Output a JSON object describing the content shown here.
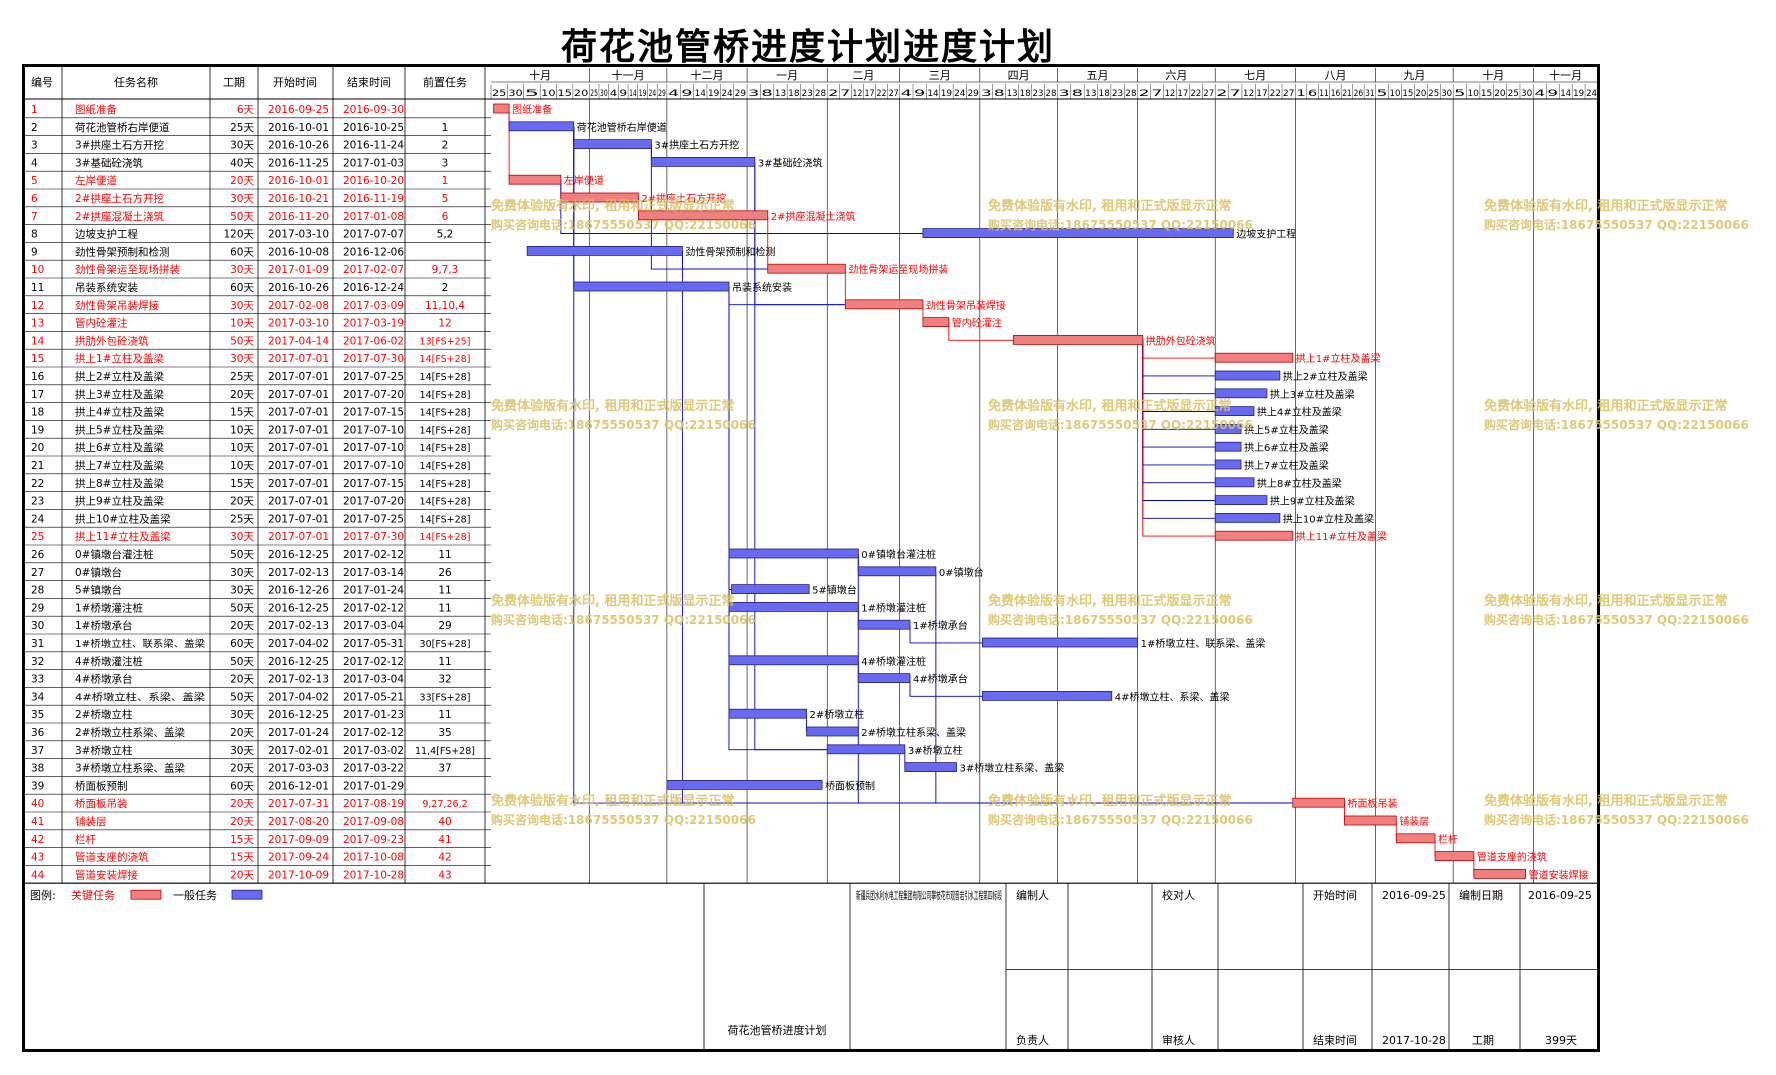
{
  "title": "荷花池管桥进度计划进度计划",
  "columns": [
    "编号",
    "任务名称",
    "工期",
    "开始时间",
    "结束时间",
    "前置任务"
  ],
  "months": [
    "十月",
    "十一月",
    "十二月",
    "一月",
    "二月",
    "三月",
    "四月",
    "五月",
    "六月",
    "七月",
    "八月",
    "九月",
    "十月",
    "十一月"
  ],
  "month_days": [
    [
      "25",
      "30",
      "5",
      "10",
      "15",
      "20"
    ],
    [
      "25",
      "30",
      "4",
      "9",
      "14",
      "19",
      "24",
      "29"
    ],
    [
      "4",
      "9",
      "14",
      "19",
      "24",
      "29"
    ],
    [
      "3",
      "8",
      "13",
      "18",
      "23",
      "28"
    ],
    [
      "2",
      "7",
      "12",
      "17",
      "22",
      "27"
    ],
    [
      "4",
      "9",
      "14",
      "19",
      "24",
      "29"
    ],
    [
      "3",
      "8",
      "13",
      "18",
      "23",
      "28"
    ],
    [
      "3",
      "8",
      "13",
      "18",
      "23",
      "28"
    ],
    [
      "2",
      "7",
      "12",
      "17",
      "22",
      "27"
    ],
    [
      "2",
      "7",
      "12",
      "17",
      "22",
      "27"
    ],
    [
      "1",
      "6",
      "11",
      "16",
      "21",
      "26",
      "31"
    ],
    [
      "5",
      "10",
      "15",
      "20",
      "25",
      "30"
    ],
    [
      "5",
      "10",
      "15",
      "20",
      "25",
      "30"
    ],
    [
      "4",
      "9",
      "14",
      "19",
      "24"
    ]
  ],
  "tasks": [
    {
      "id": "1",
      "name": "图纸准备",
      "dur": "6天",
      "start": "2016-09-25",
      "end": "2016-09-30",
      "pred": "",
      "critical": true
    },
    {
      "id": "2",
      "name": "荷花池管桥右岸便道",
      "dur": "25天",
      "start": "2016-10-01",
      "end": "2016-10-25",
      "pred": "1",
      "critical": false
    },
    {
      "id": "3",
      "name": "3#拱座土石方开挖",
      "dur": "30天",
      "start": "2016-10-26",
      "end": "2016-11-24",
      "pred": "2",
      "critical": false
    },
    {
      "id": "4",
      "name": "3#基础砼浇筑",
      "dur": "40天",
      "start": "2016-11-25",
      "end": "2017-01-03",
      "pred": "3",
      "critical": false
    },
    {
      "id": "5",
      "name": "左岸便道",
      "dur": "20天",
      "start": "2016-10-01",
      "end": "2016-10-20",
      "pred": "1",
      "critical": true
    },
    {
      "id": "6",
      "name": "2#拱座土石方开挖",
      "dur": "30天",
      "start": "2016-10-21",
      "end": "2016-11-19",
      "pred": "5",
      "critical": true
    },
    {
      "id": "7",
      "name": "2#拱座混凝土浇筑",
      "dur": "50天",
      "start": "2016-11-20",
      "end": "2017-01-08",
      "pred": "6",
      "critical": true
    },
    {
      "id": "8",
      "name": "边坡支护工程",
      "dur": "120天",
      "start": "2017-03-10",
      "end": "2017-07-07",
      "pred": "5,2",
      "critical": false
    },
    {
      "id": "9",
      "name": "劲性骨架预制和检测",
      "dur": "60天",
      "start": "2016-10-08",
      "end": "2016-12-06",
      "pred": "",
      "critical": false
    },
    {
      "id": "10",
      "name": "劲性骨架运至现场拼装",
      "dur": "30天",
      "start": "2017-01-09",
      "end": "2017-02-07",
      "pred": "9,7,3",
      "critical": true
    },
    {
      "id": "11",
      "name": "吊装系统安装",
      "dur": "60天",
      "start": "2016-10-26",
      "end": "2016-12-24",
      "pred": "2",
      "critical": false
    },
    {
      "id": "12",
      "name": "劲性骨架吊装焊接",
      "dur": "30天",
      "start": "2017-02-08",
      "end": "2017-03-09",
      "pred": "11,10,4",
      "critical": true
    },
    {
      "id": "13",
      "name": "管内砼灌注",
      "dur": "10天",
      "start": "2017-03-10",
      "end": "2017-03-19",
      "pred": "12",
      "critical": true
    },
    {
      "id": "14",
      "name": "拱肋外包砼浇筑",
      "dur": "50天",
      "start": "2017-04-14",
      "end": "2017-06-02",
      "pred": "13[FS+25]",
      "critical": true
    },
    {
      "id": "15",
      "name": "拱上1#立柱及盖梁",
      "dur": "30天",
      "start": "2017-07-01",
      "end": "2017-07-30",
      "pred": "14[FS+28]",
      "critical": true
    },
    {
      "id": "16",
      "name": "拱上2#立柱及盖梁",
      "dur": "25天",
      "start": "2017-07-01",
      "end": "2017-07-25",
      "pred": "14[FS+28]",
      "critical": false
    },
    {
      "id": "17",
      "name": "拱上3#立柱及盖梁",
      "dur": "20天",
      "start": "2017-07-01",
      "end": "2017-07-20",
      "pred": "14[FS+28]",
      "critical": false
    },
    {
      "id": "18",
      "name": "拱上4#立柱及盖梁",
      "dur": "15天",
      "start": "2017-07-01",
      "end": "2017-07-15",
      "pred": "14[FS+28]",
      "critical": false
    },
    {
      "id": "19",
      "name": "拱上5#立柱及盖梁",
      "dur": "10天",
      "start": "2017-07-01",
      "end": "2017-07-10",
      "pred": "14[FS+28]",
      "critical": false
    },
    {
      "id": "20",
      "name": "拱上6#立柱及盖梁",
      "dur": "10天",
      "start": "2017-07-01",
      "end": "2017-07-10",
      "pred": "14[FS+28]",
      "critical": false
    },
    {
      "id": "21",
      "name": "拱上7#立柱及盖梁",
      "dur": "10天",
      "start": "2017-07-01",
      "end": "2017-07-10",
      "pred": "14[FS+28]",
      "critical": false
    },
    {
      "id": "22",
      "name": "拱上8#立柱及盖梁",
      "dur": "15天",
      "start": "2017-07-01",
      "end": "2017-07-15",
      "pred": "14[FS+28]",
      "critical": false
    },
    {
      "id": "23",
      "name": "拱上9#立柱及盖梁",
      "dur": "20天",
      "start": "2017-07-01",
      "end": "2017-07-20",
      "pred": "14[FS+28]",
      "critical": false
    },
    {
      "id": "24",
      "name": "拱上10#立柱及盖梁",
      "dur": "25天",
      "start": "2017-07-01",
      "end": "2017-07-25",
      "pred": "14[FS+28]",
      "critical": false
    },
    {
      "id": "25",
      "name": "拱上11#立柱及盖梁",
      "dur": "30天",
      "start": "2017-07-01",
      "end": "2017-07-30",
      "pred": "14[FS+28]",
      "critical": true
    },
    {
      "id": "26",
      "name": "0#镇墩台灌注桩",
      "dur": "50天",
      "start": "2016-12-25",
      "end": "2017-02-12",
      "pred": "11",
      "critical": false
    },
    {
      "id": "27",
      "name": "0#镇墩台",
      "dur": "30天",
      "start": "2017-02-13",
      "end": "2017-03-14",
      "pred": "26",
      "critical": false
    },
    {
      "id": "28",
      "name": "5#镇墩台",
      "dur": "30天",
      "start": "2016-12-26",
      "end": "2017-01-24",
      "pred": "11",
      "critical": false
    },
    {
      "id": "29",
      "name": "1#桥墩灌注桩",
      "dur": "50天",
      "start": "2016-12-25",
      "end": "2017-02-12",
      "pred": "11",
      "critical": false
    },
    {
      "id": "30",
      "name": "1#桥墩承台",
      "dur": "20天",
      "start": "2017-02-13",
      "end": "2017-03-04",
      "pred": "29",
      "critical": false
    },
    {
      "id": "31",
      "name": "1#桥墩立柱、联系梁、盖梁",
      "dur": "60天",
      "start": "2017-04-02",
      "end": "2017-05-31",
      "pred": "30[FS+28]",
      "critical": false
    },
    {
      "id": "32",
      "name": "4#桥墩灌注桩",
      "dur": "50天",
      "start": "2016-12-25",
      "end": "2017-02-12",
      "pred": "11",
      "critical": false
    },
    {
      "id": "33",
      "name": "4#桥墩承台",
      "dur": "20天",
      "start": "2017-02-13",
      "end": "2017-03-04",
      "pred": "32",
      "critical": false
    },
    {
      "id": "34",
      "name": "4#桥墩立柱、系梁、盖梁",
      "dur": "50天",
      "start": "2017-04-02",
      "end": "2017-05-21",
      "pred": "33[FS+28]",
      "critical": false
    },
    {
      "id": "35",
      "name": "2#桥墩立柱",
      "dur": "30天",
      "start": "2016-12-25",
      "end": "2017-01-23",
      "pred": "11",
      "critical": false
    },
    {
      "id": "36",
      "name": "2#桥墩立柱系梁、盖梁",
      "dur": "20天",
      "start": "2017-01-24",
      "end": "2017-02-12",
      "pred": "35",
      "critical": false
    },
    {
      "id": "37",
      "name": "3#桥墩立柱",
      "dur": "30天",
      "start": "2017-02-01",
      "end": "2017-03-02",
      "pred": "11,4[FS+28]",
      "critical": false
    },
    {
      "id": "38",
      "name": "3#桥墩立柱系梁、盖梁",
      "dur": "20天",
      "start": "2017-03-03",
      "end": "2017-03-22",
      "pred": "37",
      "critical": false
    },
    {
      "id": "39",
      "name": "桥面板预制",
      "dur": "60天",
      "start": "2016-12-01",
      "end": "2017-01-29",
      "pred": "",
      "critical": false
    },
    {
      "id": "40",
      "name": "桥面板吊装",
      "dur": "20天",
      "start": "2017-07-31",
      "end": "2017-08-19",
      "pred": "9,27,26,2",
      "critical": true
    },
    {
      "id": "41",
      "name": "铺装层",
      "dur": "20天",
      "start": "2017-08-20",
      "end": "2017-09-08",
      "pred": "40",
      "critical": true
    },
    {
      "id": "42",
      "name": "栏杆",
      "dur": "15天",
      "start": "2017-09-09",
      "end": "2017-09-23",
      "pred": "41",
      "critical": true
    },
    {
      "id": "43",
      "name": "管道支座的浇筑",
      "dur": "15天",
      "start": "2017-09-24",
      "end": "2017-10-08",
      "pred": "42",
      "critical": true
    },
    {
      "id": "44",
      "name": "管道安装焊接",
      "dur": "20天",
      "start": "2017-10-09",
      "end": "2017-10-28",
      "pred": "43",
      "critical": true
    }
  ],
  "legend": {
    "label": "图例:",
    "critical": "关键任务",
    "normal": "一般任务"
  },
  "footer": {
    "project": "荷花池管桥进度计划",
    "org": "新疆兵团水利水电工程集团有限公司攀枝花市观音岩引水工程第四标段",
    "compiler_label": "编制人",
    "checker_label": "校对人",
    "lead_label": "负责人",
    "reviewer_label": "审核人",
    "start_label": "开始时间",
    "start": "2016-09-25",
    "end_label": "结束时间",
    "end": "2017-10-28",
    "date_label": "编制日期",
    "date": "2016-09-25",
    "dur_label": "工期",
    "dur": "399天"
  },
  "watermark": {
    "line1": "免费体验版有水印, 租用和正式版显示正常",
    "line2": "购买咨询电话:18675550537 QQ:22150066"
  },
  "colors": {
    "critical_fill": "#f08080",
    "critical_text": "#ff0000",
    "normal_fill": "#6a6af0",
    "link": "#0000cc",
    "watermark": "#d8c060"
  }
}
